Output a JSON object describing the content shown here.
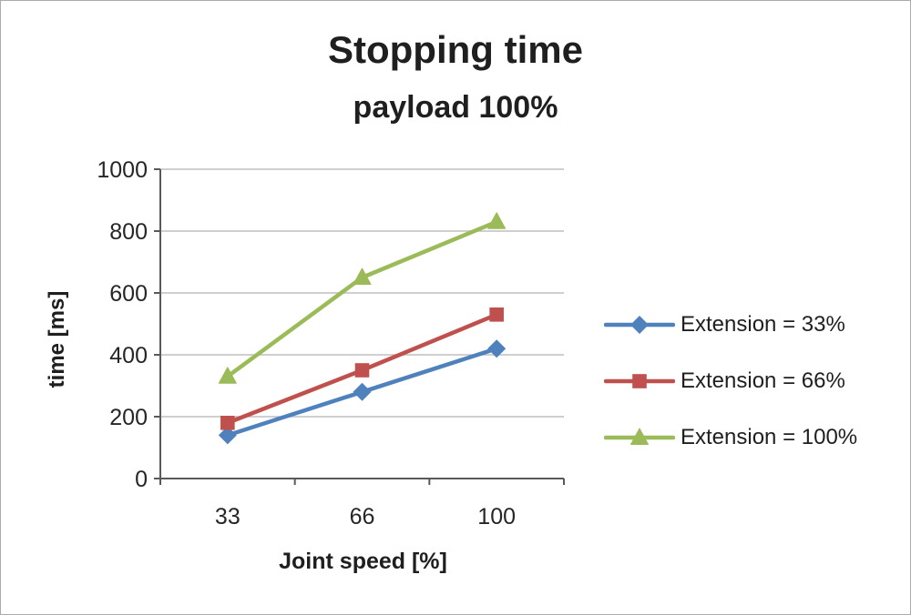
{
  "chart_data": {
    "type": "line",
    "title": "Stopping time",
    "subtitle": "payload 100%",
    "xlabel": "Joint speed [%]",
    "ylabel": "time [ms]",
    "categories": [
      "33",
      "66",
      "100"
    ],
    "series": [
      {
        "name": "Extension = 33%",
        "color": "#4F81BD",
        "marker": "diamond",
        "values": [
          140,
          280,
          420
        ]
      },
      {
        "name": "Extension = 66%",
        "color": "#C0504D",
        "marker": "square",
        "values": [
          180,
          350,
          530
        ]
      },
      {
        "name": "Extension = 100%",
        "color": "#9BBB59",
        "marker": "triangle",
        "values": [
          330,
          650,
          830
        ]
      }
    ],
    "ylim": [
      0,
      1000
    ],
    "ytick_step": 200,
    "grid": true,
    "legend_position": "right",
    "colors": {
      "gridline": "#BFBFBF",
      "axis": "#595959",
      "text": "#262626"
    }
  }
}
